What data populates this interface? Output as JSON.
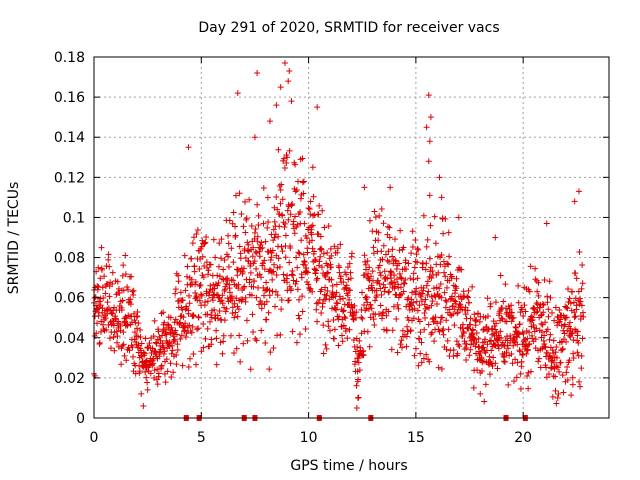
{
  "chart_data": {
    "type": "scatter",
    "title": "Day 291 of 2020, SRMTID for receiver vacs",
    "xlabel": "GPS time / hours",
    "ylabel": "SRMTID / TECUs",
    "xlim": [
      0,
      24
    ],
    "ylim": [
      0,
      0.18
    ],
    "xticks": [
      0,
      5,
      10,
      15,
      20
    ],
    "xtick_labels": [
      "0",
      "5",
      "10",
      "15",
      "20"
    ],
    "yticks": [
      0,
      0.02,
      0.04,
      0.06,
      0.08,
      0.1,
      0.12,
      0.14,
      0.16,
      0.18
    ],
    "ytick_labels": [
      "0",
      "0.02",
      "0.04",
      "0.06",
      "0.08",
      "0.1",
      "0.12",
      "0.14",
      "0.16",
      "0.18"
    ],
    "grid": true,
    "marker": "+",
    "color": "#e00000",
    "series": [
      {
        "name": "SRMTID",
        "envelope": {
          "hours": [
            0,
            0.5,
            1,
            1.5,
            2,
            2.2,
            2.5,
            3,
            3.5,
            4,
            4.5,
            5,
            5.5,
            6,
            6.5,
            7,
            7.5,
            8,
            8.5,
            9,
            9.5,
            10,
            10.5,
            11,
            11.5,
            12,
            12.3,
            12.6,
            13,
            13.5,
            14,
            14.5,
            15,
            15.5,
            16,
            16.5,
            17,
            17.5,
            18,
            18.5,
            19,
            19.5,
            20,
            20.5,
            21,
            21.5,
            22,
            22.5,
            22.8
          ],
          "center": [
            0.055,
            0.058,
            0.052,
            0.055,
            0.045,
            0.03,
            0.028,
            0.032,
            0.04,
            0.048,
            0.055,
            0.07,
            0.06,
            0.062,
            0.07,
            0.075,
            0.072,
            0.072,
            0.078,
            0.085,
            0.078,
            0.088,
            0.078,
            0.065,
            0.06,
            0.06,
            0.03,
            0.06,
            0.07,
            0.075,
            0.062,
            0.062,
            0.058,
            0.06,
            0.065,
            0.06,
            0.055,
            0.045,
            0.035,
            0.04,
            0.045,
            0.042,
            0.04,
            0.05,
            0.042,
            0.035,
            0.042,
            0.048,
            0.055
          ],
          "spread": [
            0.018,
            0.02,
            0.02,
            0.025,
            0.018,
            0.012,
            0.012,
            0.015,
            0.018,
            0.02,
            0.03,
            0.03,
            0.025,
            0.03,
            0.03,
            0.035,
            0.035,
            0.035,
            0.04,
            0.045,
            0.04,
            0.035,
            0.03,
            0.025,
            0.022,
            0.02,
            0.025,
            0.025,
            0.028,
            0.028,
            0.025,
            0.025,
            0.028,
            0.035,
            0.035,
            0.025,
            0.022,
            0.02,
            0.018,
            0.02,
            0.02,
            0.02,
            0.018,
            0.025,
            0.02,
            0.02,
            0.025,
            0.028,
            0.028
          ]
        },
        "points": [
          {
            "x": 8.9,
            "y": 0.177
          },
          {
            "x": 9.1,
            "y": 0.173
          },
          {
            "x": 7.6,
            "y": 0.172
          },
          {
            "x": 9.05,
            "y": 0.168
          },
          {
            "x": 8.7,
            "y": 0.165
          },
          {
            "x": 6.7,
            "y": 0.162
          },
          {
            "x": 15.6,
            "y": 0.161
          },
          {
            "x": 9.2,
            "y": 0.158
          },
          {
            "x": 8.5,
            "y": 0.156
          },
          {
            "x": 10.4,
            "y": 0.155
          },
          {
            "x": 15.7,
            "y": 0.15
          },
          {
            "x": 8.2,
            "y": 0.148
          },
          {
            "x": 15.5,
            "y": 0.145
          },
          {
            "x": 7.5,
            "y": 0.14
          },
          {
            "x": 15.65,
            "y": 0.138
          },
          {
            "x": 4.4,
            "y": 0.135
          },
          {
            "x": 9.0,
            "y": 0.13
          },
          {
            "x": 15.6,
            "y": 0.128
          },
          {
            "x": 10.2,
            "y": 0.125
          },
          {
            "x": 16.1,
            "y": 0.12
          },
          {
            "x": 12.6,
            "y": 0.115
          },
          {
            "x": 13.8,
            "y": 0.115
          },
          {
            "x": 22.6,
            "y": 0.113
          },
          {
            "x": 16.2,
            "y": 0.11
          },
          {
            "x": 22.4,
            "y": 0.108
          },
          {
            "x": 17.0,
            "y": 0.1
          },
          {
            "x": 18.7,
            "y": 0.09
          },
          {
            "x": 21.1,
            "y": 0.097
          },
          {
            "x": 12.3,
            "y": 0.01
          },
          {
            "x": 12.25,
            "y": 0.005
          },
          {
            "x": 2.3,
            "y": 0.006
          },
          {
            "x": 2.2,
            "y": 0.012
          },
          {
            "x": 2.5,
            "y": 0.014
          },
          {
            "x": 18.0,
            "y": 0.012
          },
          {
            "x": 17.7,
            "y": 0.015
          },
          {
            "x": 0.0,
            "y": 0.022
          },
          {
            "x": 0.05,
            "y": 0.021
          },
          {
            "x": 0.1,
            "y": 0.073
          },
          {
            "x": 0.2,
            "y": 0.075
          }
        ]
      }
    ],
    "data_gaps_hours": [
      4.3,
      4.9,
      7.0,
      7.5,
      10.5,
      12.9,
      19.2,
      20.1
    ]
  }
}
